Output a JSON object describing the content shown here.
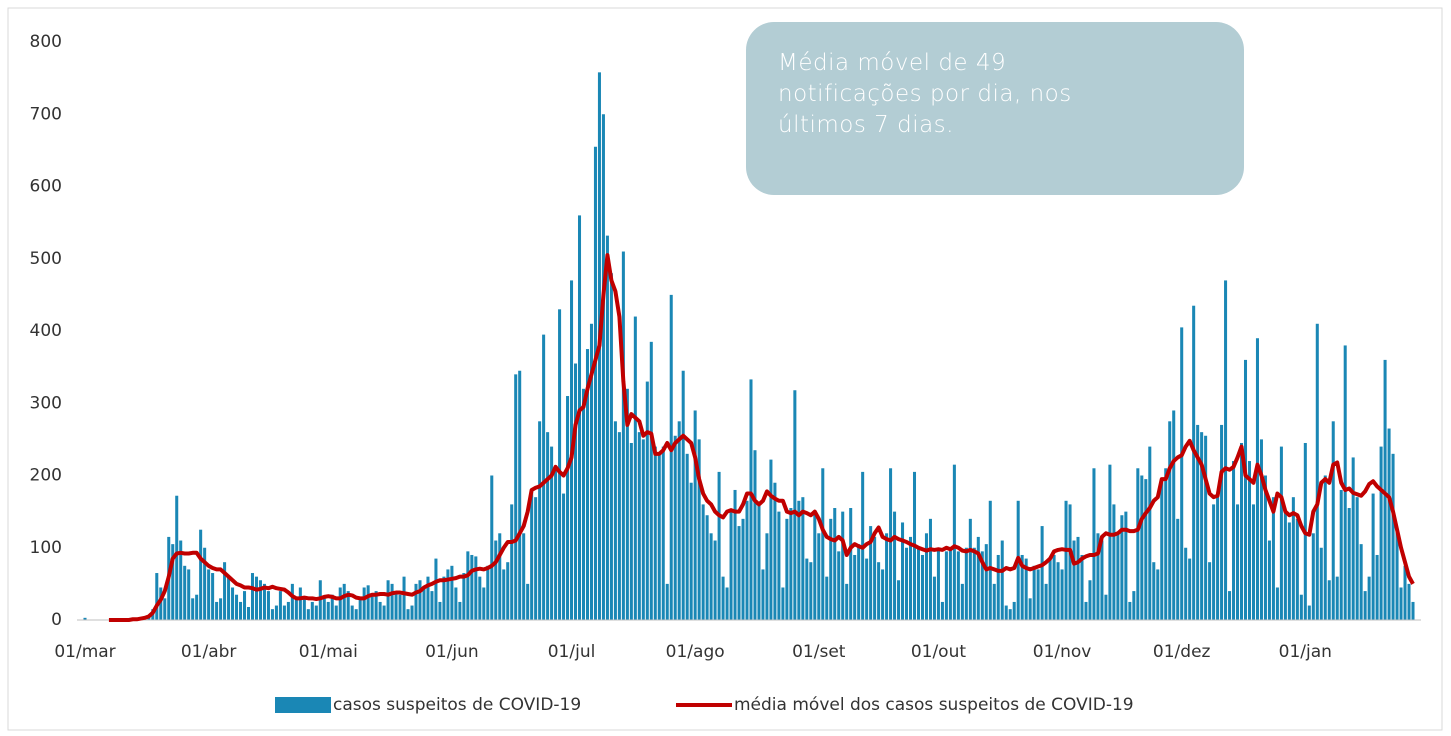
{
  "chart_data": {
    "type": "bar_line",
    "annotation": "Média móvel de 49 notificações por dia, nos últimos 7 dias.",
    "categories": [
      "01/mar",
      null,
      null,
      null,
      null,
      null,
      null,
      null,
      null,
      null,
      null,
      null,
      null,
      null,
      null,
      null,
      null,
      null,
      null,
      null,
      null,
      null,
      null,
      null,
      null,
      null,
      null,
      null,
      null,
      null,
      null,
      "01/abr",
      null,
      null,
      null,
      null,
      null,
      null,
      null,
      null,
      null,
      null,
      null,
      null,
      null,
      null,
      null,
      null,
      null,
      null,
      null,
      null,
      null,
      null,
      null,
      null,
      null,
      null,
      null,
      null,
      null,
      "01/mai",
      null,
      null,
      null,
      null,
      null,
      null,
      null,
      null,
      null,
      null,
      null,
      null,
      null,
      null,
      null,
      null,
      null,
      null,
      null,
      null,
      null,
      null,
      null,
      null,
      null,
      null,
      null,
      null,
      null,
      null,
      "01/jun",
      null,
      null,
      null,
      null,
      null,
      null,
      null,
      null,
      null,
      null,
      null,
      null,
      null,
      null,
      null,
      null,
      null,
      null,
      null,
      null,
      null,
      null,
      null,
      null,
      null,
      null,
      null,
      null,
      null,
      "01/jul",
      null,
      null,
      null,
      null,
      null,
      null,
      null,
      null,
      null,
      null,
      null,
      null,
      null,
      null,
      null,
      null,
      null,
      null,
      null,
      null,
      null,
      null,
      null,
      null,
      null,
      null,
      null,
      null,
      null,
      null,
      "01/ago",
      null,
      null,
      null,
      null,
      null,
      null,
      null,
      null,
      null,
      null,
      null,
      null,
      null,
      null,
      null,
      null,
      null,
      null,
      null,
      null,
      null,
      null,
      null,
      null,
      null,
      null,
      null,
      null,
      null,
      null,
      "01/set",
      null,
      null,
      null,
      null,
      null,
      null,
      null,
      null,
      null,
      null,
      null,
      null,
      null,
      null,
      null,
      null,
      null,
      null,
      null,
      null,
      null,
      null,
      null,
      null,
      null,
      null,
      null,
      null,
      null,
      "01/out",
      null,
      null,
      null,
      null,
      null,
      null,
      null,
      null,
      null,
      null,
      null,
      null,
      null,
      null,
      null,
      null,
      null,
      null,
      null,
      null,
      null,
      null,
      null,
      null,
      null,
      null,
      null,
      null,
      null,
      null,
      "01/nov",
      null,
      null,
      null,
      null,
      null,
      null,
      null,
      null,
      null,
      null,
      null,
      null,
      null,
      null,
      null,
      null,
      null,
      null,
      null,
      null,
      null,
      null,
      null,
      null,
      null,
      null,
      null,
      null,
      null,
      "01/dez",
      null,
      null,
      null,
      null,
      null,
      null,
      null,
      null,
      null,
      null,
      null,
      null,
      null,
      null,
      null,
      null,
      null,
      null,
      null,
      null,
      null,
      null,
      null,
      null,
      null,
      null,
      null,
      null,
      null,
      null,
      "01/jan",
      null,
      null,
      null,
      null,
      null,
      null,
      null,
      null,
      null,
      null,
      null,
      null,
      null,
      null,
      null,
      null,
      null,
      null,
      null,
      null,
      null,
      null,
      null,
      null,
      null,
      null,
      null
    ],
    "series": [
      {
        "name": "casos suspeitos de COVID-19",
        "kind": "bar",
        "color": "#1a87b5",
        "values": [
          3,
          0,
          0,
          0,
          0,
          0,
          0,
          0,
          0,
          0,
          0,
          1,
          1,
          1,
          2,
          3,
          5,
          15,
          65,
          45,
          30,
          115,
          105,
          172,
          110,
          75,
          70,
          30,
          35,
          125,
          100,
          70,
          65,
          25,
          30,
          80,
          60,
          45,
          35,
          25,
          40,
          18,
          65,
          60,
          55,
          50,
          40,
          15,
          20,
          40,
          20,
          25,
          50,
          30,
          45,
          30,
          15,
          25,
          20,
          55,
          30,
          25,
          35,
          20,
          45,
          50,
          40,
          20,
          15,
          30,
          45,
          48,
          35,
          40,
          25,
          20,
          55,
          50,
          40,
          35,
          60,
          15,
          20,
          50,
          55,
          45,
          60,
          40,
          85,
          25,
          60,
          70,
          75,
          45,
          25,
          65,
          95,
          90,
          88,
          60,
          45,
          75,
          200,
          110,
          120,
          70,
          80,
          160,
          340,
          345,
          120,
          50,
          180,
          170,
          275,
          395,
          260,
          240,
          210,
          430,
          175,
          310,
          470,
          355,
          560,
          320,
          375,
          410,
          655,
          758,
          700,
          532,
          480,
          275,
          260,
          510,
          320,
          245,
          420,
          260,
          250,
          330,
          385,
          240,
          230,
          240,
          50,
          450,
          255,
          275,
          345,
          230,
          190,
          290,
          250,
          160,
          145,
          120,
          110,
          205,
          60,
          45,
          150,
          180,
          130,
          140,
          165,
          333,
          235,
          160,
          70,
          120,
          222,
          190,
          150,
          45,
          140,
          155,
          318,
          165,
          170,
          85,
          80,
          150,
          120,
          210,
          60,
          140,
          155,
          95,
          150,
          50,
          155,
          90,
          105,
          205,
          85,
          130,
          115,
          80,
          70,
          120,
          210,
          150,
          55,
          135,
          100,
          115,
          205,
          100,
          90,
          120,
          140,
          60,
          100,
          25,
          95,
          100,
          215,
          95,
          50,
          100,
          140,
          100,
          115,
          95,
          105,
          165,
          50,
          90,
          110,
          20,
          15,
          25,
          165,
          90,
          85,
          30,
          75,
          70,
          130,
          50,
          85,
          90,
          80,
          70,
          165,
          160,
          110,
          115,
          90,
          25,
          55,
          210,
          120,
          110,
          35,
          215,
          160,
          120,
          145,
          150,
          25,
          40,
          210,
          200,
          195,
          240,
          80,
          70,
          195,
          210,
          275,
          290,
          140,
          405,
          100,
          85,
          435,
          270,
          260,
          255,
          80,
          160,
          175,
          270,
          470,
          40,
          220,
          160,
          245,
          360,
          220,
          160,
          390,
          250,
          200,
          110,
          170,
          45,
          240,
          150,
          135,
          170,
          140,
          35,
          245,
          20,
          120,
          410,
          100,
          200,
          55,
          275,
          60,
          180,
          380,
          155,
          225,
          170,
          105,
          40,
          60,
          175,
          90,
          240,
          360,
          265,
          230,
          125,
          45,
          75,
          50,
          25
        ]
      },
      {
        "name": "média móvel dos casos suspeitos de COVID-19",
        "kind": "line",
        "color": "#c00000",
        "values": [
          null,
          null,
          null,
          null,
          null,
          null,
          0,
          0,
          0,
          0,
          0,
          0,
          1,
          1,
          2,
          3,
          5,
          10,
          20,
          28,
          40,
          60,
          85,
          92,
          93,
          92,
          92,
          93,
          93,
          85,
          80,
          75,
          72,
          70,
          70,
          65,
          60,
          55,
          50,
          48,
          45,
          45,
          44,
          42,
          43,
          45,
          44,
          46,
          44,
          43,
          42,
          38,
          33,
          30,
          30,
          31,
          30,
          30,
          29,
          30,
          32,
          33,
          32,
          30,
          30,
          33,
          35,
          34,
          31,
          30,
          30,
          33,
          35,
          35,
          36,
          36,
          35,
          37,
          38,
          38,
          37,
          36,
          35,
          38,
          40,
          45,
          48,
          50,
          53,
          55,
          55,
          56,
          57,
          58,
          60,
          60,
          62,
          68,
          70,
          71,
          70,
          72,
          75,
          80,
          90,
          100,
          108,
          108,
          110,
          120,
          130,
          150,
          180,
          183,
          185,
          190,
          195,
          200,
          212,
          205,
          200,
          210,
          225,
          270,
          290,
          295,
          320,
          340,
          360,
          380,
          450,
          505,
          470,
          455,
          420,
          330,
          270,
          285,
          280,
          275,
          255,
          260,
          258,
          230,
          230,
          235,
          245,
          235,
          245,
          250,
          255,
          250,
          245,
          225,
          195,
          175,
          165,
          160,
          150,
          145,
          142,
          150,
          152,
          150,
          150,
          160,
          175,
          175,
          165,
          160,
          165,
          178,
          172,
          168,
          165,
          165,
          150,
          148,
          150,
          145,
          150,
          148,
          145,
          150,
          140,
          125,
          115,
          112,
          110,
          115,
          110,
          90,
          100,
          105,
          102,
          100,
          105,
          108,
          120,
          128,
          115,
          112,
          110,
          115,
          112,
          110,
          108,
          105,
          103,
          100,
          98,
          96,
          98,
          97,
          98,
          97,
          100,
          98,
          102,
          100,
          96,
          95,
          97,
          95,
          92,
          80,
          70,
          72,
          70,
          68,
          68,
          72,
          70,
          72,
          86,
          75,
          72,
          70,
          72,
          74,
          76,
          80,
          85,
          95,
          97,
          98,
          97,
          97,
          78,
          80,
          85,
          88,
          90,
          90,
          92,
          115,
          120,
          118,
          118,
          120,
          125,
          125,
          123,
          123,
          125,
          140,
          148,
          155,
          165,
          170,
          195,
          195,
          210,
          220,
          225,
          228,
          240,
          248,
          235,
          225,
          215,
          195,
          175,
          170,
          172,
          205,
          210,
          208,
          212,
          225,
          240,
          200,
          195,
          190,
          215,
          200,
          180,
          165,
          150,
          175,
          170,
          150,
          145,
          148,
          145,
          130,
          120,
          118,
          150,
          160,
          190,
          195,
          190,
          215,
          218,
          190,
          180,
          182,
          176,
          174,
          172,
          178,
          188,
          192,
          185,
          180,
          175,
          170,
          150,
          125,
          100,
          80,
          60,
          50
        ]
      }
    ],
    "ylim": [
      0,
      800
    ],
    "yticks": [
      0,
      100,
      200,
      300,
      400,
      500,
      600,
      700,
      800
    ],
    "grid": false,
    "legend": "bottom"
  }
}
